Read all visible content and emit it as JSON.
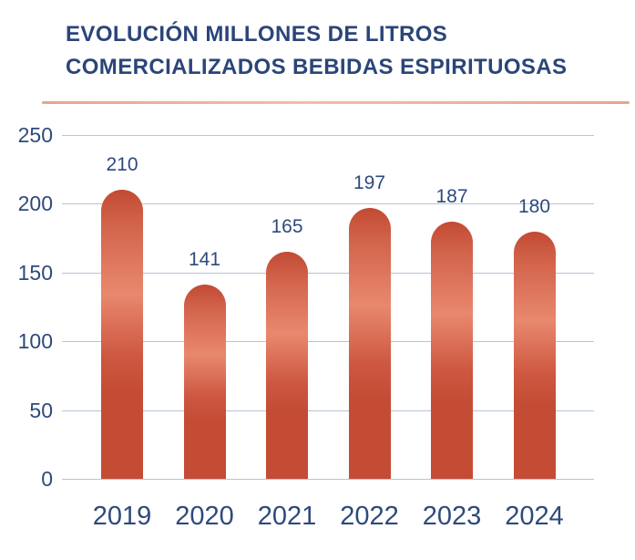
{
  "title": {
    "line1": "EVOLUCIÓN MILLONES DE LITROS",
    "line2": "COMERCIALIZADOS BEBIDAS ESPIRITUOSAS"
  },
  "chart_data": {
    "type": "bar",
    "title": "EVOLUCIÓN MILLONES DE LITROS COMERCIALIZADOS BEBIDAS ESPIRITUOSAS",
    "categories": [
      "2019",
      "2020",
      "2021",
      "2022",
      "2023",
      "2024"
    ],
    "values": [
      210,
      141,
      165,
      197,
      187,
      180
    ],
    "data_labels_visible": true,
    "xlabel": "",
    "ylabel": "",
    "ylim": [
      0,
      250
    ],
    "yticks": [
      0,
      50,
      100,
      150,
      200,
      250
    ],
    "grid": true,
    "legend": false
  },
  "colors": {
    "background": "#ffffff",
    "title_text": "#2b4579",
    "axis_text": "#2e4a7c",
    "gridline": "#b7c3d8",
    "title_rule": "#eda995",
    "bar_dark": "#c44c35",
    "bar_light": "#e8886e",
    "bar_cap": "#c24a33"
  }
}
